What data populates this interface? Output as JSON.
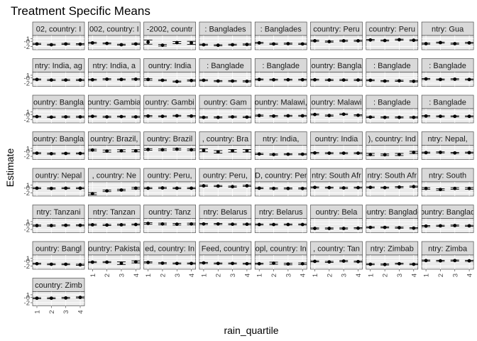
{
  "chart_data": {
    "type": "scatter",
    "title": "Treatment Specific Means",
    "xlabel": "rain_quartile",
    "ylabel": "Estimate",
    "x_ticks": [
      "1",
      "2",
      "3",
      "4"
    ],
    "y_ticks": [
      "1",
      "-0",
      "-2"
    ],
    "y_tick_values": [
      1,
      0,
      -2
    ],
    "ylim": [
      -3.2,
      2.2
    ],
    "grid": true,
    "facets": [
      {
        "strip": "02, country: I",
        "values": [
          -1.0,
          -1.3,
          -1.0,
          -1.1
        ],
        "errors": [
          0.2,
          0.2,
          0.2,
          0.2
        ]
      },
      {
        "strip": "002, country: I",
        "values": [
          -0.6,
          -0.8,
          -1.3,
          -1.0
        ],
        "errors": [
          0.2,
          0.2,
          0.2,
          0.2
        ]
      },
      {
        "strip": "-2002, countr",
        "values": [
          -0.3,
          -1.5,
          -0.5,
          -0.6
        ],
        "errors": [
          0.8,
          0.3,
          0.4,
          0.6
        ]
      },
      {
        "strip": ": Banglades",
        "values": [
          -1.3,
          -1.5,
          -1.3,
          -1.2
        ],
        "errors": [
          0.2,
          0.2,
          0.2,
          0.2
        ]
      },
      {
        "strip": ": Banglades",
        "values": [
          -0.6,
          -1.0,
          -0.9,
          -1.0
        ],
        "errors": [
          0.2,
          0.2,
          0.2,
          0.2
        ]
      },
      {
        "strip": "country: Peru",
        "values": [
          0.2,
          -0.1,
          0.2,
          0.2
        ],
        "errors": [
          0.2,
          0.2,
          0.2,
          0.2
        ]
      },
      {
        "strip": "country: Peru",
        "values": [
          0.5,
          0.3,
          0.6,
          0.4
        ],
        "errors": [
          0.2,
          0.2,
          0.2,
          0.2
        ]
      },
      {
        "strip": "ntry: Gua",
        "values": [
          -0.9,
          -0.5,
          -0.9,
          -0.6
        ],
        "errors": [
          0.2,
          0.2,
          0.2,
          0.2
        ]
      },
      {
        "strip": "ntry: India, ag",
        "values": [
          -0.6,
          -0.8,
          -0.8,
          -0.8
        ],
        "errors": [
          0.2,
          0.2,
          0.2,
          0.2
        ]
      },
      {
        "strip": "ntry: India, a",
        "values": [
          -0.7,
          -0.5,
          -0.6,
          -0.5
        ],
        "errors": [
          0.2,
          0.2,
          0.2,
          0.2
        ]
      },
      {
        "strip": "ountry: India",
        "values": [
          -0.6,
          -0.9,
          -1.4,
          -1.0
        ],
        "errors": [
          0.3,
          0.2,
          0.2,
          0.2
        ]
      },
      {
        "strip": ": Banglade",
        "values": [
          -0.9,
          -1.2,
          -1.2,
          -1.3
        ],
        "errors": [
          0.2,
          0.2,
          0.2,
          0.2
        ]
      },
      {
        "strip": ": Banglade",
        "values": [
          -0.6,
          -0.7,
          -0.7,
          -0.7
        ],
        "errors": [
          0.2,
          0.2,
          0.2,
          0.2
        ]
      },
      {
        "strip": "ountry: Bangla",
        "values": [
          -0.7,
          -0.8,
          -0.8,
          -0.8
        ],
        "errors": [
          0.2,
          0.2,
          0.2,
          0.2
        ]
      },
      {
        "strip": ": Banglade",
        "values": [
          -0.9,
          -1.2,
          -1.1,
          -1.3
        ],
        "errors": [
          0.2,
          0.2,
          0.2,
          0.2
        ]
      },
      {
        "strip": ": Banglade",
        "values": [
          -0.4,
          -0.6,
          -0.5,
          -0.6
        ],
        "errors": [
          0.2,
          0.2,
          0.2,
          0.2
        ]
      },
      {
        "strip": "ountry: Bangla",
        "values": [
          -0.8,
          -1.0,
          -0.9,
          -0.9
        ],
        "errors": [
          0.2,
          0.2,
          0.2,
          0.2
        ]
      },
      {
        "strip": "ountry: Gambia",
        "values": [
          -0.7,
          -0.9,
          -0.8,
          -0.9
        ],
        "errors": [
          0.2,
          0.2,
          0.2,
          0.2
        ]
      },
      {
        "strip": "ountry: Gambi",
        "values": [
          -0.6,
          -0.7,
          -0.5,
          -0.6
        ],
        "errors": [
          0.2,
          0.2,
          0.2,
          0.2
        ]
      },
      {
        "strip": "ountry: Gam",
        "values": [
          -1.1,
          -1.1,
          -0.9,
          -1.0
        ],
        "errors": [
          0.2,
          0.2,
          0.2,
          0.2
        ]
      },
      {
        "strip": "ountry: Malawi,",
        "values": [
          -0.4,
          -0.6,
          -0.5,
          -0.5
        ],
        "errors": [
          0.2,
          0.2,
          0.2,
          0.2
        ]
      },
      {
        "strip": "ountry: Malawi",
        "values": [
          -0.0,
          -0.4,
          0.1,
          -0.3
        ],
        "errors": [
          0.2,
          0.2,
          0.2,
          0.2
        ]
      },
      {
        "strip": ": Banglade",
        "values": [
          -1.0,
          -1.1,
          -1.1,
          -1.1
        ],
        "errors": [
          0.2,
          0.2,
          0.2,
          0.2
        ]
      },
      {
        "strip": ": Banglade",
        "values": [
          -0.6,
          -0.7,
          -0.7,
          -0.7
        ],
        "errors": [
          0.2,
          0.2,
          0.2,
          0.2
        ]
      },
      {
        "strip": "ountry: Bangla",
        "values": [
          -0.8,
          -1.0,
          -0.9,
          -0.9
        ],
        "errors": [
          0.2,
          0.2,
          0.2,
          0.2
        ]
      },
      {
        "strip": "ountry: Brazil,",
        "values": [
          0.4,
          -0.0,
          0.1,
          0.1
        ],
        "errors": [
          0.3,
          0.4,
          0.4,
          0.4
        ]
      },
      {
        "strip": "ountry: Brazil",
        "values": [
          0.6,
          0.5,
          0.7,
          0.5
        ],
        "errors": [
          0.3,
          0.3,
          0.3,
          0.3
        ]
      },
      {
        "strip": ", country: Bra",
        "values": [
          0.3,
          -0.3,
          0.1,
          0.1
        ],
        "errors": [
          0.6,
          0.5,
          0.5,
          0.5
        ]
      },
      {
        "strip": "ntry: India,",
        "values": [
          -1.1,
          -1.3,
          -1.2,
          -1.2
        ],
        "errors": [
          0.2,
          0.2,
          0.2,
          0.2
        ]
      },
      {
        "strip": "ountry: India",
        "values": [
          -0.7,
          -0.8,
          -0.8,
          -0.8
        ],
        "errors": [
          0.2,
          0.2,
          0.2,
          0.2
        ]
      },
      {
        "strip": "), country: Ind",
        "values": [
          -1.3,
          -1.4,
          -1.3,
          -0.5
        ],
        "errors": [
          0.4,
          0.3,
          0.4,
          0.4
        ]
      },
      {
        "strip": "ntry: Nepal,",
        "values": [
          -0.6,
          -0.5,
          -0.7,
          -0.6
        ],
        "errors": [
          0.2,
          0.2,
          0.2,
          0.2
        ]
      },
      {
        "strip": "ountry: Nepal",
        "values": [
          -0.2,
          -0.3,
          -0.2,
          -0.2
        ],
        "errors": [
          0.2,
          0.2,
          0.2,
          0.2
        ]
      },
      {
        "strip": ", country: Ne",
        "values": [
          -2.3,
          -1.2,
          -0.9,
          -0.2
        ],
        "errors": [
          0.4,
          0.3,
          0.3,
          0.3
        ]
      },
      {
        "strip": "ountry: Peru,",
        "values": [
          -0.2,
          -0.1,
          -0.2,
          -0.2
        ],
        "errors": [
          0.2,
          0.2,
          0.2,
          0.2
        ]
      },
      {
        "strip": "ountry: Peru,",
        "values": [
          0.7,
          0.6,
          0.4,
          0.7
        ],
        "errors": [
          0.2,
          0.2,
          0.2,
          0.2
        ]
      },
      {
        "strip": "D, country: Per",
        "values": [
          -0.2,
          -0.3,
          -0.3,
          -0.3
        ],
        "errors": [
          0.2,
          0.2,
          0.2,
          0.2
        ]
      },
      {
        "strip": "ntry: South Afr",
        "values": [
          0.1,
          0.0,
          -0.1,
          0.0
        ],
        "errors": [
          0.2,
          0.2,
          0.2,
          0.2
        ]
      },
      {
        "strip": "ntry: South Afr",
        "values": [
          0.1,
          0.0,
          0.2,
          0.4
        ],
        "errors": [
          0.2,
          0.2,
          0.2,
          0.2
        ]
      },
      {
        "strip": "ntry: South",
        "values": [
          -0.3,
          -0.7,
          -0.3,
          -0.3
        ],
        "errors": [
          0.3,
          0.3,
          0.3,
          0.3
        ]
      },
      {
        "strip": "ntry: Tanzani",
        "values": [
          -0.5,
          -0.5,
          -0.4,
          -0.4
        ],
        "errors": [
          0.2,
          0.2,
          0.2,
          0.2
        ]
      },
      {
        "strip": "ntry: Tanzan",
        "values": [
          -0.2,
          -0.3,
          -0.2,
          -0.1
        ],
        "errors": [
          0.2,
          0.2,
          0.2,
          0.2
        ]
      },
      {
        "strip": "ountry: Tanz",
        "values": [
          0.3,
          0.1,
          0.0,
          0.1
        ],
        "errors": [
          0.3,
          0.3,
          0.3,
          0.3
        ]
      },
      {
        "strip": "ntry: Belarus",
        "values": [
          0.1,
          0.1,
          0.0,
          0.0
        ],
        "errors": [
          0.2,
          0.2,
          0.2,
          0.2
        ]
      },
      {
        "strip": "ntry: Belarus",
        "values": [
          -0.1,
          -0.1,
          -0.1,
          -0.1
        ],
        "errors": [
          0.2,
          0.2,
          0.2,
          0.2
        ]
      },
      {
        "strip": "ountry: Bela",
        "values": [
          -1.6,
          -1.6,
          -1.6,
          -1.5
        ],
        "errors": [
          0.2,
          0.2,
          0.2,
          0.2
        ]
      },
      {
        "strip": "ountry: Banglade",
        "values": [
          -1.2,
          -1.2,
          -1.3,
          -1.5
        ],
        "errors": [
          0.2,
          0.2,
          0.2,
          0.2
        ]
      },
      {
        "strip": "ountry: Banglad",
        "values": [
          -0.7,
          -0.6,
          -0.5,
          -0.6
        ],
        "errors": [
          0.2,
          0.2,
          0.2,
          0.2
        ]
      },
      {
        "strip": "ountry: Bangl",
        "values": [
          -1.1,
          -1.3,
          -1.3,
          -1.5
        ],
        "errors": [
          0.2,
          0.2,
          0.2,
          0.2
        ]
      },
      {
        "strip": "ountry: Pakista",
        "values": [
          -0.5,
          -0.5,
          -0.9,
          -0.4
        ],
        "errors": [
          0.2,
          0.2,
          0.5,
          0.4
        ]
      },
      {
        "strip": "ed, country: In",
        "values": [
          -0.6,
          -0.9,
          -1.0,
          -1.0
        ],
        "errors": [
          0.2,
          0.2,
          0.2,
          0.2
        ]
      },
      {
        "strip": "Feed, country",
        "values": [
          -0.8,
          -1.0,
          -1.0,
          -1.1
        ],
        "errors": [
          0.2,
          0.2,
          0.2,
          0.2
        ]
      },
      {
        "strip": "opl, country: In",
        "values": [
          -1.1,
          -0.9,
          -1.2,
          -1.1
        ],
        "errors": [
          0.2,
          0.4,
          0.3,
          0.3
        ]
      },
      {
        "strip": ", country: Tan",
        "values": [
          -0.2,
          -0.4,
          -0.1,
          -0.3
        ],
        "errors": [
          0.2,
          0.2,
          0.2,
          0.2
        ]
      },
      {
        "strip": "ntry: Zimbab",
        "values": [
          -1.3,
          -1.4,
          -1.1,
          -1.3
        ],
        "errors": [
          0.2,
          0.2,
          0.2,
          0.2
        ]
      },
      {
        "strip": "ntry: Zimba",
        "values": [
          0.1,
          0.0,
          0.1,
          0.0
        ],
        "errors": [
          0.2,
          0.2,
          0.2,
          0.2
        ]
      },
      {
        "strip": "country: Zimb",
        "values": [
          -0.3,
          -0.3,
          -0.2,
          0.0
        ],
        "errors": [
          0.2,
          0.2,
          0.2,
          0.2
        ]
      }
    ]
  }
}
